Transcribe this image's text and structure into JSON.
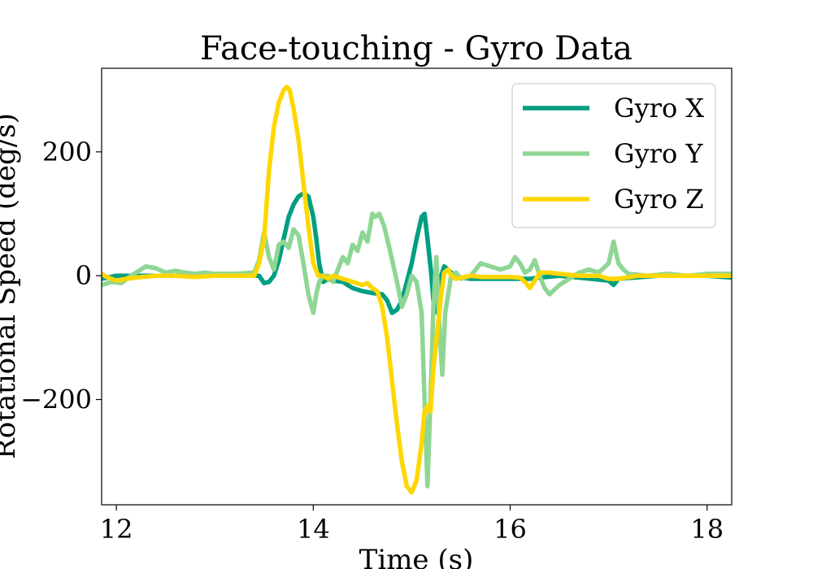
{
  "chart_data": {
    "type": "line",
    "title": "Face-touching - Gyro Data",
    "xlabel": "Time (s)",
    "ylabel": "Rotational Speed (deg/s)",
    "xlim": [
      11.85,
      18.25
    ],
    "ylim": [
      -370,
      335
    ],
    "xticks": [
      12,
      14,
      16,
      18
    ],
    "yticks": [
      -200,
      0,
      200
    ],
    "ytick_labels": [
      "−200",
      "0",
      "200"
    ],
    "grid": false,
    "legend_position": "top-right",
    "series": [
      {
        "name": "Gyro X",
        "color": "#009E82",
        "points": [
          [
            11.85,
            -5
          ],
          [
            12.0,
            0
          ],
          [
            12.3,
            0
          ],
          [
            12.7,
            0
          ],
          [
            13.0,
            0
          ],
          [
            13.3,
            0
          ],
          [
            13.45,
            0
          ],
          [
            13.5,
            -12
          ],
          [
            13.55,
            -10
          ],
          [
            13.6,
            0
          ],
          [
            13.65,
            25
          ],
          [
            13.7,
            60
          ],
          [
            13.75,
            95
          ],
          [
            13.8,
            115
          ],
          [
            13.85,
            128
          ],
          [
            13.9,
            133
          ],
          [
            13.95,
            128
          ],
          [
            14.0,
            95
          ],
          [
            14.03,
            60
          ],
          [
            14.06,
            20
          ],
          [
            14.1,
            -10
          ],
          [
            14.15,
            -5
          ],
          [
            14.2,
            -8
          ],
          [
            14.3,
            -10
          ],
          [
            14.4,
            -20
          ],
          [
            14.5,
            -25
          ],
          [
            14.6,
            -28
          ],
          [
            14.7,
            -30
          ],
          [
            14.75,
            -40
          ],
          [
            14.8,
            -60
          ],
          [
            14.85,
            -55
          ],
          [
            14.9,
            -40
          ],
          [
            14.95,
            -10
          ],
          [
            15.0,
            20
          ],
          [
            15.05,
            60
          ],
          [
            15.1,
            95
          ],
          [
            15.13,
            100
          ],
          [
            15.16,
            60
          ],
          [
            15.2,
            0
          ],
          [
            15.23,
            -60
          ],
          [
            15.26,
            -50
          ],
          [
            15.3,
            0
          ],
          [
            15.33,
            15
          ],
          [
            15.4,
            5
          ],
          [
            15.5,
            -3
          ],
          [
            15.6,
            -5
          ],
          [
            16.0,
            -5
          ],
          [
            16.2,
            -5
          ],
          [
            16.3,
            -3
          ],
          [
            16.5,
            0
          ],
          [
            16.7,
            -3
          ],
          [
            17.0,
            -8
          ],
          [
            17.05,
            -15
          ],
          [
            17.1,
            -5
          ],
          [
            17.5,
            0
          ],
          [
            18.0,
            0
          ],
          [
            18.25,
            -3
          ]
        ]
      },
      {
        "name": "Gyro Y",
        "color": "#8FD694",
        "points": [
          [
            11.85,
            -15
          ],
          [
            11.95,
            -10
          ],
          [
            12.05,
            -12
          ],
          [
            12.15,
            0
          ],
          [
            12.3,
            15
          ],
          [
            12.4,
            12
          ],
          [
            12.5,
            5
          ],
          [
            12.6,
            8
          ],
          [
            12.7,
            5
          ],
          [
            12.8,
            3
          ],
          [
            12.9,
            5
          ],
          [
            13.0,
            3
          ],
          [
            13.2,
            3
          ],
          [
            13.4,
            5
          ],
          [
            13.45,
            25
          ],
          [
            13.5,
            70
          ],
          [
            13.55,
            30
          ],
          [
            13.6,
            10
          ],
          [
            13.65,
            50
          ],
          [
            13.7,
            55
          ],
          [
            13.75,
            45
          ],
          [
            13.8,
            75
          ],
          [
            13.85,
            65
          ],
          [
            13.9,
            20
          ],
          [
            13.95,
            -30
          ],
          [
            14.0,
            -60
          ],
          [
            14.03,
            -30
          ],
          [
            14.06,
            -10
          ],
          [
            14.1,
            0
          ],
          [
            14.15,
            0
          ],
          [
            14.2,
            -10
          ],
          [
            14.25,
            10
          ],
          [
            14.3,
            30
          ],
          [
            14.35,
            20
          ],
          [
            14.4,
            50
          ],
          [
            14.45,
            40
          ],
          [
            14.5,
            70
          ],
          [
            14.55,
            55
          ],
          [
            14.6,
            100
          ],
          [
            14.63,
            95
          ],
          [
            14.67,
            100
          ],
          [
            14.72,
            80
          ],
          [
            14.78,
            40
          ],
          [
            14.85,
            -10
          ],
          [
            14.9,
            -50
          ],
          [
            14.95,
            -30
          ],
          [
            15.0,
            0
          ],
          [
            15.05,
            -10
          ],
          [
            15.1,
            -60
          ],
          [
            15.13,
            -200
          ],
          [
            15.16,
            -340
          ],
          [
            15.19,
            -200
          ],
          [
            15.22,
            -50
          ],
          [
            15.25,
            30
          ],
          [
            15.28,
            -80
          ],
          [
            15.31,
            -160
          ],
          [
            15.34,
            -60
          ],
          [
            15.4,
            0
          ],
          [
            15.45,
            5
          ],
          [
            15.5,
            -5
          ],
          [
            15.6,
            0
          ],
          [
            15.7,
            20
          ],
          [
            15.8,
            15
          ],
          [
            15.9,
            10
          ],
          [
            16.0,
            15
          ],
          [
            16.05,
            30
          ],
          [
            16.1,
            20
          ],
          [
            16.15,
            5
          ],
          [
            16.2,
            10
          ],
          [
            16.25,
            25
          ],
          [
            16.3,
            0
          ],
          [
            16.35,
            -20
          ],
          [
            16.4,
            -30
          ],
          [
            16.5,
            -15
          ],
          [
            16.6,
            -5
          ],
          [
            16.7,
            5
          ],
          [
            16.8,
            10
          ],
          [
            16.9,
            5
          ],
          [
            17.0,
            20
          ],
          [
            17.05,
            55
          ],
          [
            17.1,
            20
          ],
          [
            17.15,
            10
          ],
          [
            17.2,
            3
          ],
          [
            17.4,
            0
          ],
          [
            17.6,
            3
          ],
          [
            17.8,
            0
          ],
          [
            18.0,
            3
          ],
          [
            18.25,
            3
          ]
        ]
      },
      {
        "name": "Gyro Z",
        "color": "#FFD700",
        "points": [
          [
            11.85,
            3
          ],
          [
            11.9,
            -2
          ],
          [
            12.0,
            -8
          ],
          [
            12.1,
            -5
          ],
          [
            12.2,
            -3
          ],
          [
            12.4,
            0
          ],
          [
            12.6,
            0
          ],
          [
            12.8,
            -2
          ],
          [
            13.0,
            0
          ],
          [
            13.2,
            0
          ],
          [
            13.4,
            0
          ],
          [
            13.45,
            20
          ],
          [
            13.5,
            60
          ],
          [
            13.55,
            170
          ],
          [
            13.6,
            240
          ],
          [
            13.65,
            280
          ],
          [
            13.7,
            300
          ],
          [
            13.73,
            305
          ],
          [
            13.76,
            300
          ],
          [
            13.8,
            270
          ],
          [
            13.85,
            220
          ],
          [
            13.9,
            150
          ],
          [
            13.95,
            80
          ],
          [
            14.0,
            20
          ],
          [
            14.05,
            0
          ],
          [
            14.1,
            0
          ],
          [
            14.15,
            -5
          ],
          [
            14.2,
            0
          ],
          [
            14.3,
            -5
          ],
          [
            14.4,
            -10
          ],
          [
            14.5,
            -15
          ],
          [
            14.55,
            -12
          ],
          [
            14.6,
            -20
          ],
          [
            14.65,
            -25
          ],
          [
            14.7,
            -50
          ],
          [
            14.75,
            -100
          ],
          [
            14.8,
            -170
          ],
          [
            14.85,
            -240
          ],
          [
            14.9,
            -300
          ],
          [
            14.95,
            -340
          ],
          [
            15.0,
            -350
          ],
          [
            15.05,
            -330
          ],
          [
            15.1,
            -270
          ],
          [
            15.13,
            -220
          ],
          [
            15.16,
            -210
          ],
          [
            15.19,
            -220
          ],
          [
            15.22,
            -150
          ],
          [
            15.26,
            -90
          ],
          [
            15.3,
            -30
          ],
          [
            15.33,
            5
          ],
          [
            15.37,
            10
          ],
          [
            15.4,
            0
          ],
          [
            15.45,
            -5
          ],
          [
            15.5,
            -3
          ],
          [
            15.6,
            0
          ],
          [
            15.7,
            -2
          ],
          [
            16.0,
            -2
          ],
          [
            16.1,
            -3
          ],
          [
            16.15,
            -10
          ],
          [
            16.2,
            -20
          ],
          [
            16.25,
            -8
          ],
          [
            16.3,
            5
          ],
          [
            16.4,
            5
          ],
          [
            16.5,
            3
          ],
          [
            16.7,
            0
          ],
          [
            16.9,
            0
          ],
          [
            17.0,
            -5
          ],
          [
            17.1,
            -5
          ],
          [
            17.3,
            0
          ],
          [
            17.6,
            0
          ],
          [
            18.0,
            0
          ],
          [
            18.25,
            0
          ]
        ]
      }
    ]
  }
}
